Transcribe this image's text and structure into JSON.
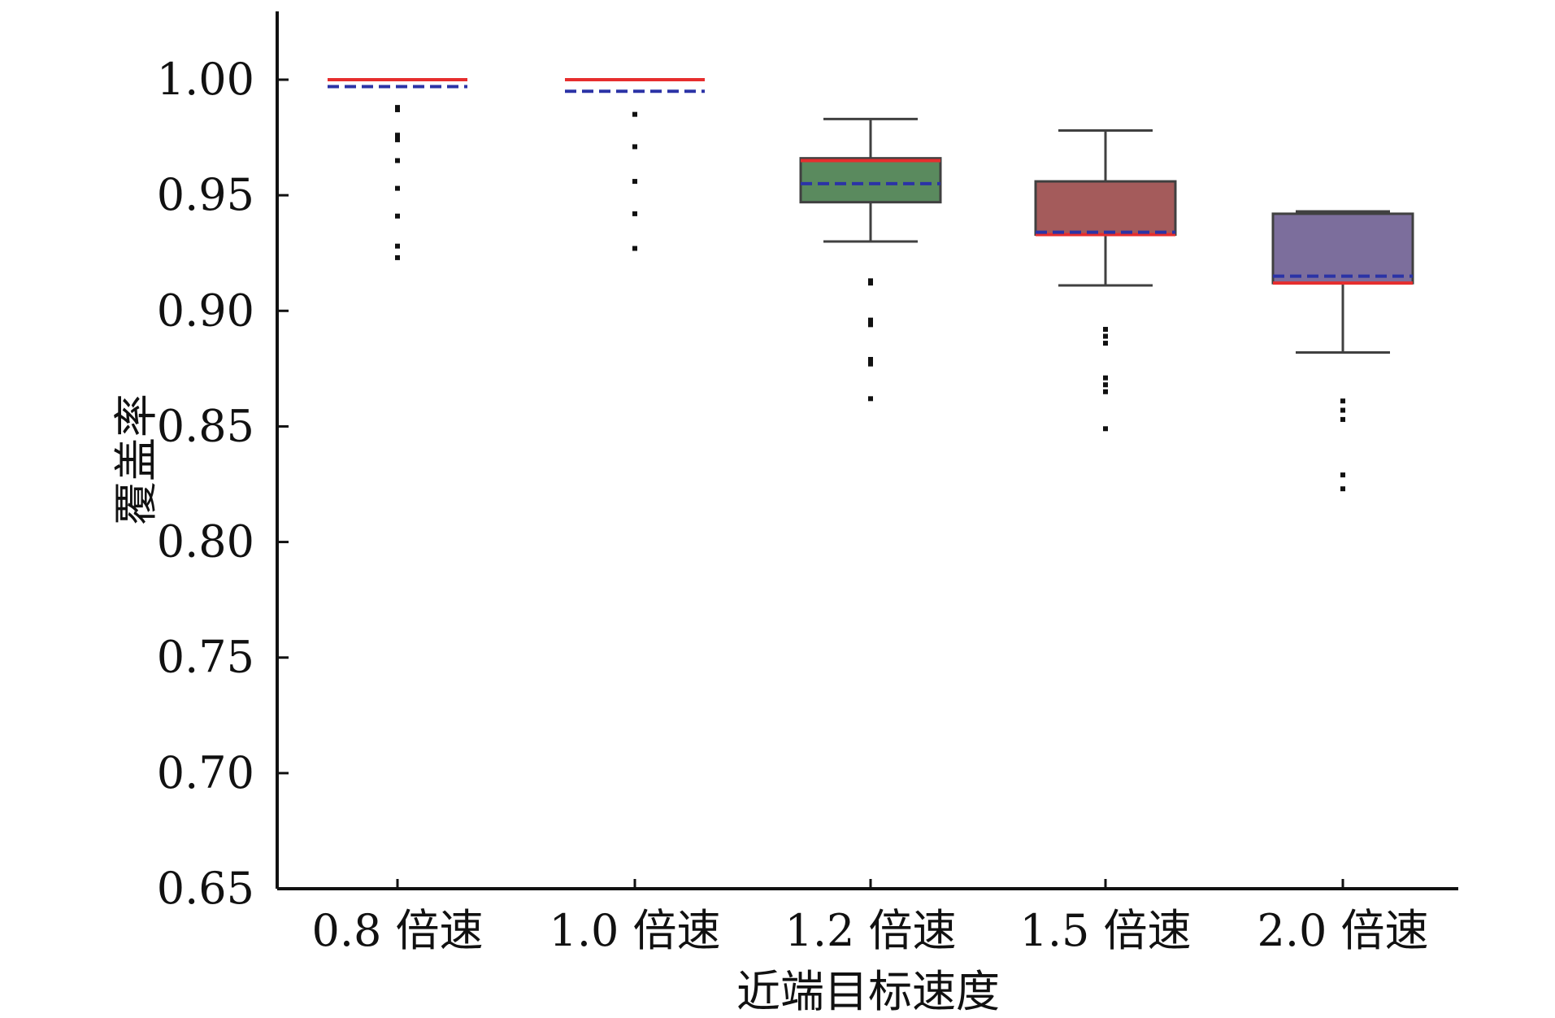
{
  "chart_data": {
    "type": "box",
    "xlabel": "近端目标速度",
    "ylabel": "覆盖率",
    "ylim": [
      0.65,
      1.02
    ],
    "yticks": [
      "0.65",
      "0.70",
      "0.75",
      "0.80",
      "0.85",
      "0.90",
      "0.95",
      "1.00"
    ],
    "grid": false,
    "legend": "none",
    "categories": [
      "0.8 倍速",
      "1.0 倍速",
      "1.2 倍速",
      "1.5 倍速",
      "2.0 倍速"
    ],
    "boxes": [
      {
        "category": "0.8 倍速",
        "q1": 1.0,
        "q3": 1.0,
        "median": 1.0,
        "mean": 0.997,
        "whisker_low": 1.0,
        "whisker_high": 1.0,
        "outliers": [
          0.988,
          0.987,
          0.976,
          0.975,
          0.974,
          0.965,
          0.953,
          0.941,
          0.928,
          0.923
        ],
        "fill": "#ffffff"
      },
      {
        "category": "1.0 倍速",
        "q1": 1.0,
        "q3": 1.0,
        "median": 1.0,
        "mean": 0.995,
        "whisker_low": 1.0,
        "whisker_high": 1.0,
        "outliers": [
          0.985,
          0.971,
          0.956,
          0.942,
          0.927
        ],
        "fill": "#ffffff"
      },
      {
        "category": "1.2 倍速",
        "q1": 0.947,
        "q3": 0.966,
        "median": 0.965,
        "mean": 0.955,
        "whisker_low": 0.93,
        "whisker_high": 0.983,
        "outliers": [
          0.913,
          0.912,
          0.896,
          0.894,
          0.879,
          0.877,
          0.862
        ],
        "fill": "#5a8a5e"
      },
      {
        "category": "1.5 倍速",
        "q1": 0.933,
        "q3": 0.956,
        "median": 0.933,
        "mean": 0.934,
        "whisker_low": 0.911,
        "whisker_high": 0.978,
        "outliers": [
          0.892,
          0.889,
          0.886,
          0.871,
          0.868,
          0.865,
          0.849
        ],
        "fill": "#a45b5b"
      },
      {
        "category": "2.0 倍速",
        "q1": 0.912,
        "q3": 0.942,
        "median": 0.912,
        "mean": 0.915,
        "whisker_low": 0.882,
        "whisker_high": 0.943,
        "outliers": [
          0.861,
          0.857,
          0.853,
          0.829,
          0.823
        ],
        "fill": "#7c6e9c"
      }
    ],
    "colors": {
      "median": "#e62e2e",
      "mean": "#2b33a6",
      "whisker": "#404040",
      "box_edge": "#404040",
      "outlier": "#111111",
      "axis": "#111111"
    }
  }
}
